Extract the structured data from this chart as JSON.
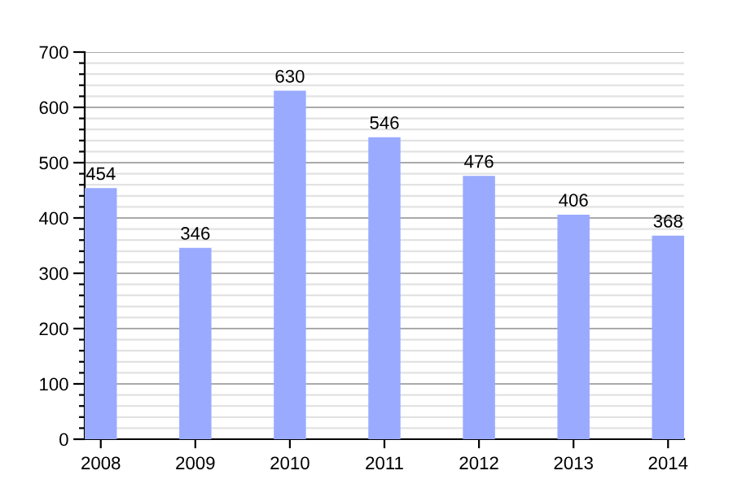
{
  "chart_data": {
    "type": "bar",
    "categories": [
      "2008",
      "2009",
      "2010",
      "2011",
      "2012",
      "2013",
      "2014"
    ],
    "values": [
      454,
      346,
      630,
      546,
      476,
      406,
      368
    ],
    "color": "#99aaff",
    "data_labels": true,
    "ylim": [
      0,
      700
    ],
    "yticks": [
      0,
      {
        "value": 20,
        "label": null
      },
      {
        "value": 40,
        "label": null
      },
      {
        "value": 60,
        "label": null
      },
      {
        "value": 80,
        "label": null
      },
      100,
      {
        "value": 120,
        "label": null
      },
      {
        "value": 140,
        "label": null
      },
      {
        "value": 160,
        "label": null
      },
      {
        "value": 180,
        "label": null
      },
      200,
      {
        "value": 220,
        "label": null
      },
      {
        "value": 240,
        "label": null
      },
      {
        "value": 260,
        "label": null
      },
      {
        "value": 280,
        "label": null
      },
      300,
      {
        "value": 320,
        "label": null
      },
      {
        "value": 340,
        "label": null
      },
      {
        "value": 360,
        "label": null
      },
      {
        "value": 380,
        "label": null
      },
      400,
      {
        "value": 420,
        "label": null
      },
      {
        "value": 440,
        "label": null
      },
      {
        "value": 460,
        "label": null
      },
      {
        "value": 480,
        "label": null
      },
      500,
      {
        "value": 520,
        "label": null
      },
      {
        "value": 540,
        "label": null
      },
      {
        "value": 560,
        "label": null
      },
      {
        "value": 580,
        "label": null
      },
      600,
      {
        "value": 620,
        "label": null
      },
      {
        "value": 640,
        "label": null
      },
      {
        "value": 660,
        "label": null
      },
      {
        "value": 680,
        "label": null
      },
      700
    ],
    "grid": "y"
  }
}
